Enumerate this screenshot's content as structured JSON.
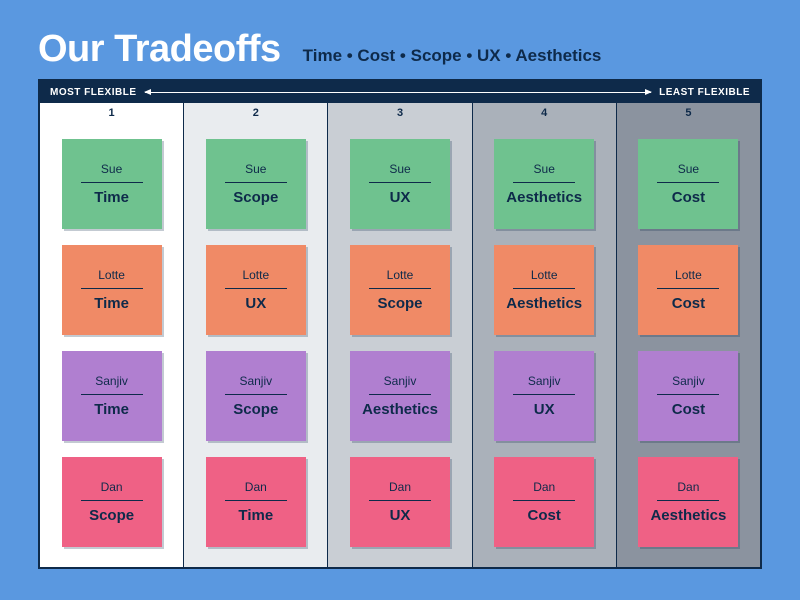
{
  "title": "Our Tradeoffs",
  "subtitle": "Time • Cost • Scope • UX • Aesthetics",
  "scale": {
    "left": "MOST FLEXIBLE",
    "right": "LEAST FLEXIBLE"
  },
  "colors": {
    "page_bg": "#5a98e0",
    "board_border": "#0e2a4a",
    "text_dark": "#0e2a4a",
    "column_bgs": [
      "#ffffff",
      "#e9ecef",
      "#c9ced4",
      "#aab1ba",
      "#8b939f"
    ],
    "person": {
      "Sue": "#6fc28f",
      "Lotte": "#f08a66",
      "Sanjiv": "#b07fd0",
      "Dan": "#ef6185"
    }
  },
  "columns": [
    {
      "num": "1",
      "cards": [
        {
          "person": "Sue",
          "value": "Time"
        },
        {
          "person": "Lotte",
          "value": "Time"
        },
        {
          "person": "Sanjiv",
          "value": "Time"
        },
        {
          "person": "Dan",
          "value": "Scope"
        }
      ]
    },
    {
      "num": "2",
      "cards": [
        {
          "person": "Sue",
          "value": "Scope"
        },
        {
          "person": "Lotte",
          "value": "UX"
        },
        {
          "person": "Sanjiv",
          "value": "Scope"
        },
        {
          "person": "Dan",
          "value": "Time"
        }
      ]
    },
    {
      "num": "3",
      "cards": [
        {
          "person": "Sue",
          "value": "UX"
        },
        {
          "person": "Lotte",
          "value": "Scope"
        },
        {
          "person": "Sanjiv",
          "value": "Aesthetics"
        },
        {
          "person": "Dan",
          "value": "UX"
        }
      ]
    },
    {
      "num": "4",
      "cards": [
        {
          "person": "Sue",
          "value": "Aesthetics"
        },
        {
          "person": "Lotte",
          "value": "Aesthetics"
        },
        {
          "person": "Sanjiv",
          "value": "UX"
        },
        {
          "person": "Dan",
          "value": "Cost"
        }
      ]
    },
    {
      "num": "5",
      "cards": [
        {
          "person": "Sue",
          "value": "Cost"
        },
        {
          "person": "Lotte",
          "value": "Cost"
        },
        {
          "person": "Sanjiv",
          "value": "Cost"
        },
        {
          "person": "Dan",
          "value": "Aesthetics"
        }
      ]
    }
  ]
}
